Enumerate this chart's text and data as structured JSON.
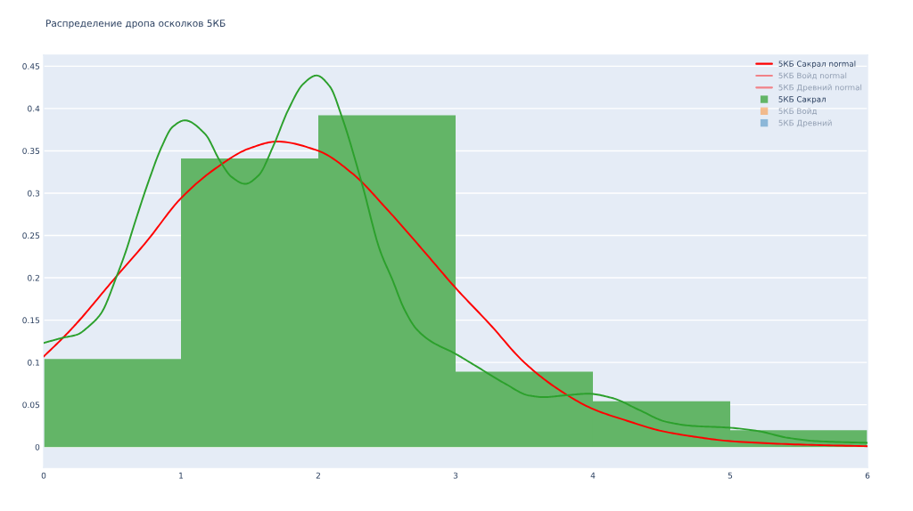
{
  "chart_data": {
    "type": "histogram",
    "title": "Распределение дропа осколков 5КБ",
    "series": [
      {
        "name": "5КБ Сакрал normal",
        "type": "line",
        "color": "#ff0000",
        "x": [
          0,
          0.14,
          0.25,
          0.5,
          0.75,
          1.0,
          1.25,
          1.5,
          1.7,
          2.0,
          2.25,
          2.5,
          2.75,
          3.0,
          3.25,
          3.5,
          3.75,
          4.0,
          4.25,
          4.5,
          4.75,
          5.0,
          5.5,
          6.0
        ],
        "values": [
          0.107,
          0.129,
          0.148,
          0.196,
          0.243,
          0.294,
          0.329,
          0.353,
          0.361,
          0.35,
          0.323,
          0.281,
          0.235,
          0.188,
          0.145,
          0.1,
          0.068,
          0.045,
          0.031,
          0.019,
          0.012,
          0.007,
          0.003,
          0.001
        ]
      },
      {
        "name": "5КБ Войд normal",
        "type": "line",
        "color": "#ff0000"
      },
      {
        "name": "5КБ Древний normal",
        "type": "line",
        "color": "#ff0000"
      },
      {
        "name": "5КБ Сакрал",
        "color": "#63b567",
        "bins": [
          0,
          1,
          2,
          3,
          4,
          5,
          6
        ],
        "values": [
          0.104,
          0.341,
          0.392,
          0.089,
          0.054,
          0.02
        ]
      },
      {
        "name": "5КБ Войд",
        "color": "#ff7f0e"
      },
      {
        "name": "5КБ Древний",
        "color": "#1f77b4"
      },
      {
        "type": "line",
        "color": "#2ca02c",
        "x": [
          0,
          0.136,
          0.245,
          0.331,
          0.418,
          0.532,
          0.602,
          0.656,
          0.764,
          0.86,
          0.937,
          1.028,
          1.175,
          1.284,
          1.37,
          1.468,
          1.565,
          1.673,
          1.78,
          1.89,
          1.987,
          2.084,
          2.17,
          2.32,
          2.448,
          2.539,
          2.626,
          2.712,
          2.82,
          2.99,
          3.145,
          3.36,
          3.533,
          3.643,
          3.79,
          3.967,
          4.14,
          4.335,
          4.53,
          4.725,
          4.985,
          5.2,
          5.417,
          5.63,
          6.0
        ],
        "values": [
          0.123,
          0.129,
          0.133,
          0.143,
          0.158,
          0.202,
          0.233,
          0.261,
          0.314,
          0.355,
          0.378,
          0.386,
          0.37,
          0.338,
          0.319,
          0.311,
          0.321,
          0.356,
          0.398,
          0.429,
          0.439,
          0.426,
          0.391,
          0.31,
          0.233,
          0.198,
          0.163,
          0.14,
          0.125,
          0.111,
          0.096,
          0.075,
          0.061,
          0.059,
          0.061,
          0.063,
          0.058,
          0.044,
          0.03,
          0.025,
          0.023,
          0.019,
          0.011,
          0.007,
          0.005
        ]
      }
    ],
    "xlim": [
      0,
      6
    ],
    "xticks": [
      0,
      1,
      2,
      3,
      4,
      5,
      6
    ],
    "ylim": [
      -0.024,
      0.463
    ],
    "yticks": [
      0,
      0.05,
      0.1,
      0.15,
      0.2,
      0.25,
      0.3,
      0.35,
      0.4,
      0.45
    ],
    "grid": "y",
    "legend": "top right"
  }
}
